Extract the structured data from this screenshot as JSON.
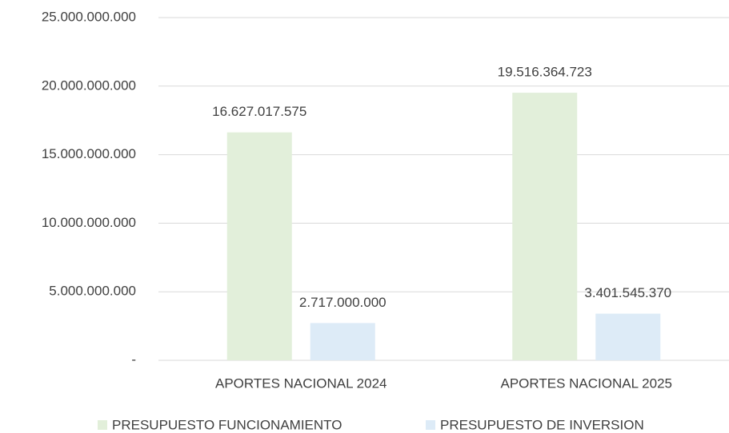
{
  "chart_data": {
    "type": "bar",
    "categories": [
      "APORTES NACIONAL 2024",
      "APORTES NACIONAL 2025"
    ],
    "series": [
      {
        "name": "PRESUPUESTO FUNCIONAMIENTO",
        "color": "#e2efda",
        "values": [
          16627017575,
          19516364723
        ],
        "value_labels": [
          "16.627.017.575",
          "19.516.364.723"
        ]
      },
      {
        "name": "PRESUPUESTO DE INVERSION",
        "color": "#ddebf7",
        "values": [
          2717000000,
          3401545370
        ],
        "value_labels": [
          "2.717.000.000",
          "3.401.545.370"
        ]
      }
    ],
    "ylim": [
      0,
      25000000000
    ],
    "yticks": [
      {
        "value": 0,
        "label": "-"
      },
      {
        "value": 5000000000,
        "label": "5.000.000.000"
      },
      {
        "value": 10000000000,
        "label": "10.000.000.000"
      },
      {
        "value": 15000000000,
        "label": "15.000.000.000"
      },
      {
        "value": 20000000000,
        "label": "20.000.000.000"
      },
      {
        "value": 25000000000,
        "label": "25.000.000.000"
      }
    ],
    "grid": true,
    "legend": "bottom"
  }
}
